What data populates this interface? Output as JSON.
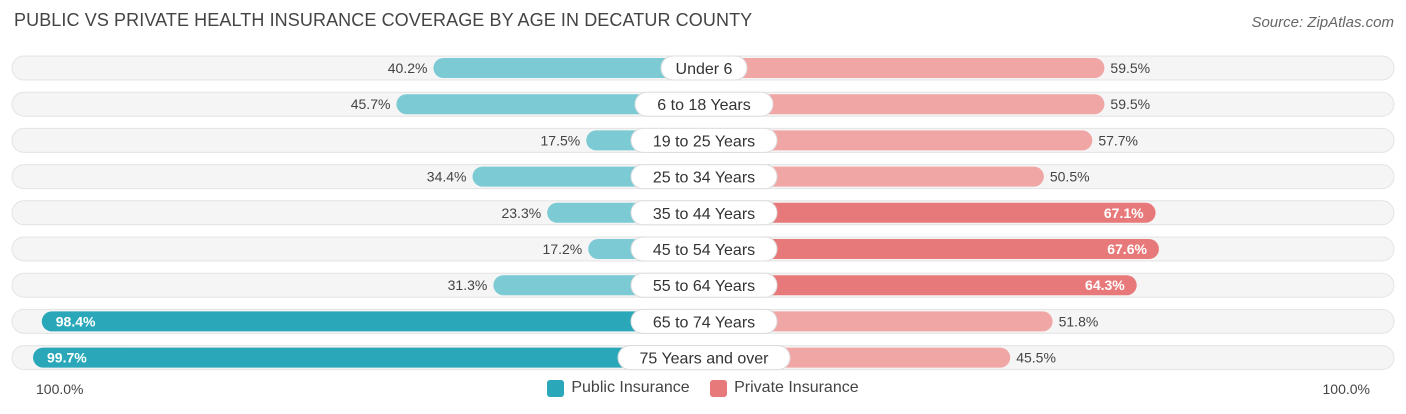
{
  "title": "PUBLIC VS PRIVATE HEALTH INSURANCE COVERAGE BY AGE IN DECATUR COUNTY",
  "source": "Source: ZipAtlas.com",
  "axis": {
    "left_label": "100.0%",
    "right_label": "100.0%"
  },
  "legend": {
    "public_label": "Public Insurance",
    "private_label": "Private Insurance"
  },
  "colors": {
    "public": "#7ccad3",
    "public_strong": "#2aa8b9",
    "private": "#f0a6a5",
    "private_strong": "#e8797a",
    "track": "#f2f2f2"
  },
  "chart_data": {
    "type": "bar",
    "orientation": "horizontal-diverging",
    "title": "PUBLIC VS PRIVATE HEALTH INSURANCE COVERAGE BY AGE IN DECATUR COUNTY",
    "xlim": [
      0,
      100
    ],
    "categories": [
      "Under 6",
      "6 to 18 Years",
      "19 to 25 Years",
      "25 to 34 Years",
      "35 to 44 Years",
      "45 to 54 Years",
      "55 to 64 Years",
      "65 to 74 Years",
      "75 Years and over"
    ],
    "series": [
      {
        "name": "Public Insurance",
        "values": [
          40.2,
          45.7,
          17.5,
          34.4,
          23.3,
          17.2,
          31.3,
          98.4,
          99.7
        ],
        "labels": [
          "40.2%",
          "45.7%",
          "17.5%",
          "34.4%",
          "23.3%",
          "17.2%",
          "31.3%",
          "98.4%",
          "99.7%"
        ]
      },
      {
        "name": "Private Insurance",
        "values": [
          59.5,
          59.5,
          57.7,
          50.5,
          67.1,
          67.6,
          64.3,
          51.8,
          45.5
        ],
        "labels": [
          "59.5%",
          "59.5%",
          "57.7%",
          "50.5%",
          "67.1%",
          "67.6%",
          "64.3%",
          "51.8%",
          "45.5%"
        ]
      }
    ]
  }
}
